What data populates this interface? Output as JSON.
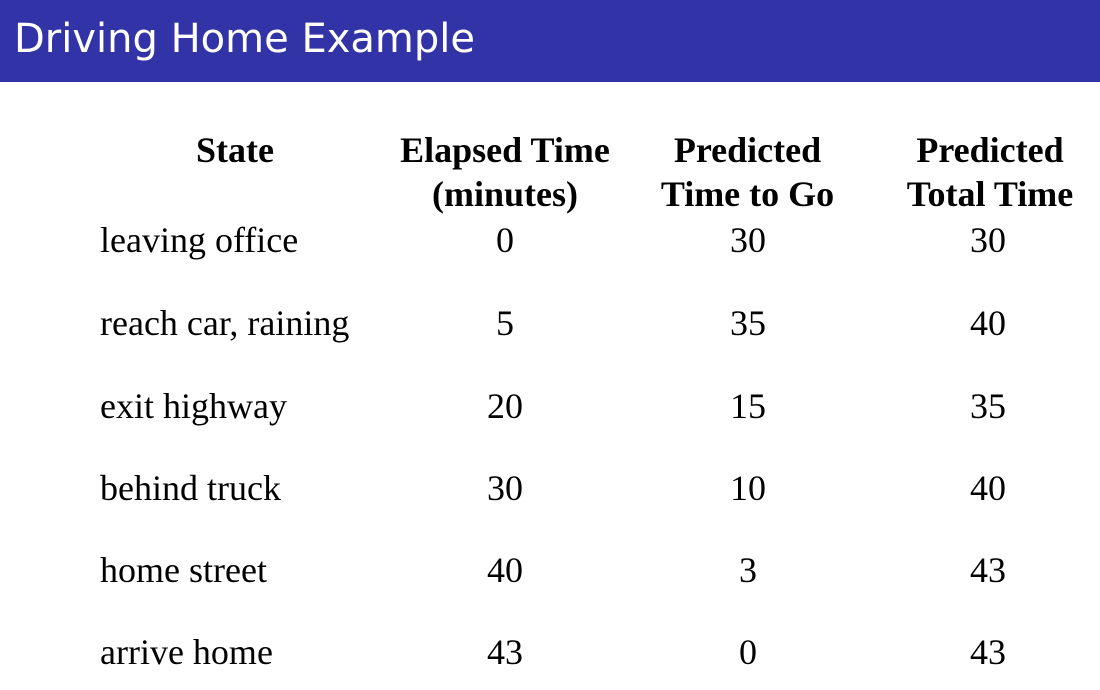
{
  "title": "Driving Home Example",
  "headers": {
    "state": "State",
    "elapsed_line1": "Elapsed Time",
    "elapsed_line2": "(minutes)",
    "predicted_togo_line1": "Predicted",
    "predicted_togo_line2": "Time to Go",
    "predicted_total_line1": "Predicted",
    "predicted_total_line2": "Total Time"
  },
  "rows": [
    {
      "state": "leaving office",
      "elapsed": "0",
      "togo": "30",
      "total": "30"
    },
    {
      "state": "reach car, raining",
      "elapsed": "5",
      "togo": "35",
      "total": "40"
    },
    {
      "state": "exit highway",
      "elapsed": "20",
      "togo": "15",
      "total": "35"
    },
    {
      "state": "behind truck",
      "elapsed": "30",
      "togo": "10",
      "total": "40"
    },
    {
      "state": "home street",
      "elapsed": "40",
      "togo": "3",
      "total": "43"
    },
    {
      "state": "arrive home",
      "elapsed": "43",
      "togo": "0",
      "total": "43"
    }
  ],
  "colors": {
    "title_bar": "#3333a8",
    "title_text": "#ffffff"
  }
}
